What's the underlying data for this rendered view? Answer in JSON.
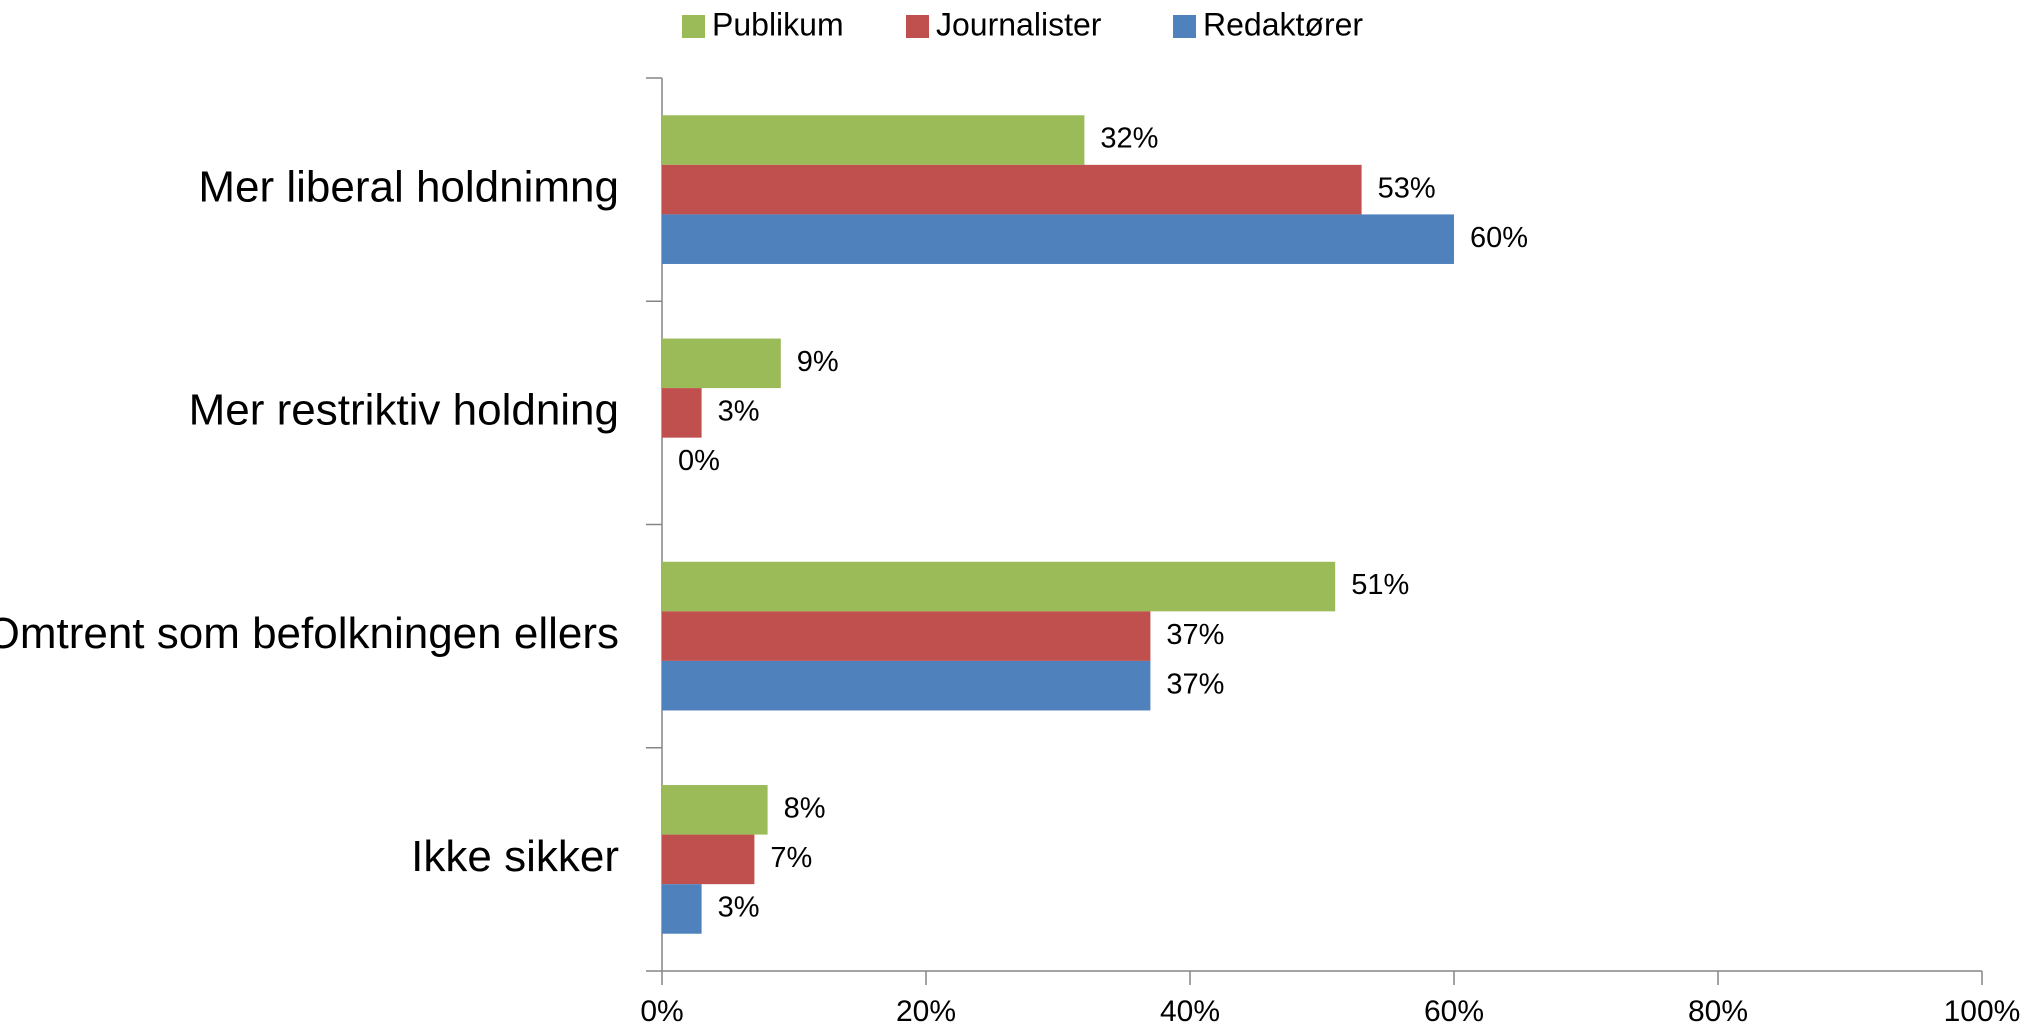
{
  "chart_data": {
    "type": "hbar",
    "categories": [
      "Mer liberal holdnimng",
      "Mer restriktiv holdning",
      "Omtrent som befolkningen ellers",
      "Ikke sikker"
    ],
    "series": [
      {
        "name": "Publikum",
        "color": "#9bbb59",
        "values": [
          32,
          9,
          51,
          8
        ],
        "value_labels": [
          "32%",
          "9%",
          "51%",
          "8%"
        ]
      },
      {
        "name": "Journalister",
        "color": "#c0504d",
        "values": [
          53,
          3,
          37,
          7
        ],
        "value_labels": [
          "53%",
          "3%",
          "37%",
          "7%"
        ]
      },
      {
        "name": "Redaktører",
        "color": "#4f81bd",
        "values": [
          60,
          0,
          37,
          3
        ],
        "value_labels": [
          "60%",
          "0%",
          "37%",
          "3%"
        ]
      }
    ],
    "xlim": [
      0,
      100
    ],
    "xticks": [
      {
        "value": 0,
        "label": "0%"
      },
      {
        "value": 20,
        "label": "20%"
      },
      {
        "value": 40,
        "label": "40%"
      },
      {
        "value": 60,
        "label": "60%"
      },
      {
        "value": 80,
        "label": "80%"
      },
      {
        "value": 100,
        "label": "100%"
      }
    ],
    "legend": "top"
  }
}
